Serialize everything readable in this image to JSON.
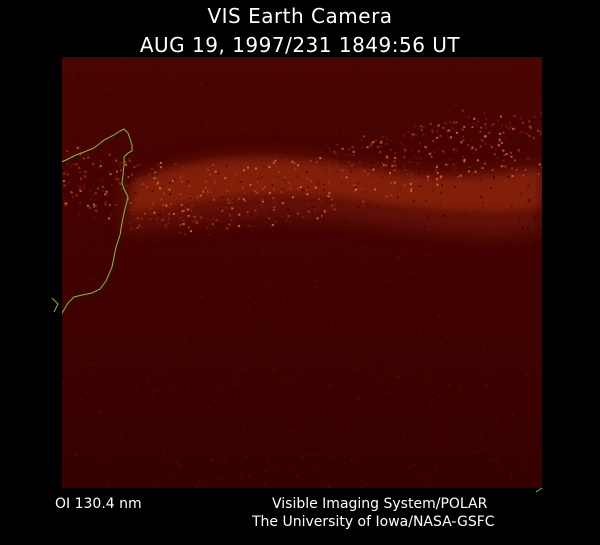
{
  "header": {
    "title": "VIS Earth Camera",
    "timestamp": "AUG 19, 1997/231 1849:56 UT"
  },
  "image": {
    "description_color": "#3d0000",
    "aurora_color": "#d2501e",
    "coastline_color": "#7fbf3f"
  },
  "footer": {
    "filter": "OI  130.4 nm",
    "instrument": "Visible Imaging System/POLAR",
    "institution": "The University of Iowa/NASA-GSFC"
  }
}
